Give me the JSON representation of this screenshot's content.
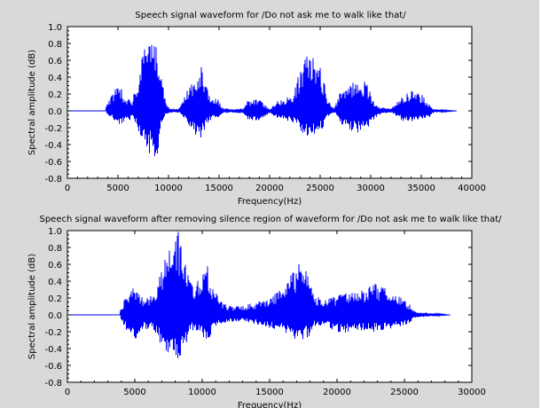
{
  "figure": {
    "background": "#d9d9d9",
    "plot_background": "#ffffff",
    "line_color": "#0000ff"
  },
  "chart_data": [
    {
      "type": "line",
      "title": "Speech signal waveform for /Do not ask me to walk like that/",
      "xlabel": "Frequency(Hz)",
      "ylabel": "Spectral amplitude (dB)",
      "xlim": [
        0,
        40000
      ],
      "ylim": [
        -0.8,
        1.0
      ],
      "xticks": [
        0,
        5000,
        10000,
        15000,
        20000,
        25000,
        30000,
        35000,
        40000
      ],
      "xtick_labels": [
        "0",
        "5000",
        "10000",
        "15000",
        "20000",
        "25000",
        "30000",
        "35000",
        "40000"
      ],
      "yticks": [
        -0.8,
        -0.6,
        -0.4,
        -0.2,
        0.0,
        0.2,
        0.4,
        0.6,
        0.8,
        1.0
      ],
      "ytick_labels": [
        "-0.8",
        "-0.6",
        "-0.4",
        "-0.2",
        "0.0",
        "0.2",
        "0.4",
        "0.6",
        "0.8",
        "1.0"
      ],
      "grid": false,
      "series": [
        {
          "color": "#0000ff",
          "signal_end": 38500,
          "envelope": [
            {
              "x": 3800,
              "upper": 0.05,
              "lower": -0.04
            },
            {
              "x": 4700,
              "upper": 0.28,
              "lower": -0.12
            },
            {
              "x": 5100,
              "upper": 0.38,
              "lower": -0.18
            },
            {
              "x": 5600,
              "upper": 0.18,
              "lower": -0.14
            },
            {
              "x": 6400,
              "upper": 0.12,
              "lower": -0.1
            },
            {
              "x": 7200,
              "upper": 0.55,
              "lower": -0.3
            },
            {
              "x": 7800,
              "upper": 0.8,
              "lower": -0.48
            },
            {
              "x": 8400,
              "upper": 0.86,
              "lower": -0.54
            },
            {
              "x": 8800,
              "upper": 1.0,
              "lower": -0.62
            },
            {
              "x": 9200,
              "upper": 0.62,
              "lower": -0.22
            },
            {
              "x": 9700,
              "upper": 0.1,
              "lower": -0.04
            },
            {
              "x": 10200,
              "upper": 0.03,
              "lower": -0.02
            },
            {
              "x": 11000,
              "upper": 0.02,
              "lower": -0.02
            },
            {
              "x": 11900,
              "upper": 0.28,
              "lower": -0.16
            },
            {
              "x": 12600,
              "upper": 0.38,
              "lower": -0.28
            },
            {
              "x": 13200,
              "upper": 0.55,
              "lower": -0.36
            },
            {
              "x": 13800,
              "upper": 0.28,
              "lower": -0.16
            },
            {
              "x": 14300,
              "upper": 0.12,
              "lower": -0.1
            },
            {
              "x": 14800,
              "upper": 0.16,
              "lower": -0.08
            },
            {
              "x": 15300,
              "upper": 0.04,
              "lower": -0.03
            },
            {
              "x": 16200,
              "upper": 0.02,
              "lower": -0.02
            },
            {
              "x": 17400,
              "upper": 0.03,
              "lower": -0.03
            },
            {
              "x": 17800,
              "upper": 0.12,
              "lower": -0.1
            },
            {
              "x": 18600,
              "upper": 0.14,
              "lower": -0.12
            },
            {
              "x": 19200,
              "upper": 0.12,
              "lower": -0.1
            },
            {
              "x": 20000,
              "upper": 0.02,
              "lower": -0.02
            },
            {
              "x": 20700,
              "upper": 0.12,
              "lower": -0.1
            },
            {
              "x": 21400,
              "upper": 0.15,
              "lower": -0.12
            },
            {
              "x": 22200,
              "upper": 0.18,
              "lower": -0.14
            },
            {
              "x": 22800,
              "upper": 0.4,
              "lower": -0.2
            },
            {
              "x": 23400,
              "upper": 0.62,
              "lower": -0.3
            },
            {
              "x": 24000,
              "upper": 0.72,
              "lower": -0.32
            },
            {
              "x": 24600,
              "upper": 0.62,
              "lower": -0.28
            },
            {
              "x": 25200,
              "upper": 0.46,
              "lower": -0.22
            },
            {
              "x": 25800,
              "upper": 0.12,
              "lower": -0.06
            },
            {
              "x": 26400,
              "upper": 0.03,
              "lower": -0.02
            },
            {
              "x": 26900,
              "upper": 0.2,
              "lower": -0.14
            },
            {
              "x": 27800,
              "upper": 0.32,
              "lower": -0.24
            },
            {
              "x": 28800,
              "upper": 0.38,
              "lower": -0.26
            },
            {
              "x": 29600,
              "upper": 0.34,
              "lower": -0.22
            },
            {
              "x": 30300,
              "upper": 0.12,
              "lower": -0.1
            },
            {
              "x": 31000,
              "upper": 0.04,
              "lower": -0.03
            },
            {
              "x": 32000,
              "upper": 0.03,
              "lower": -0.02
            },
            {
              "x": 33100,
              "upper": 0.18,
              "lower": -0.12
            },
            {
              "x": 34100,
              "upper": 0.26,
              "lower": -0.14
            },
            {
              "x": 35000,
              "upper": 0.2,
              "lower": -0.12
            },
            {
              "x": 35800,
              "upper": 0.08,
              "lower": -0.08
            },
            {
              "x": 36200,
              "upper": 0.02,
              "lower": -0.02
            },
            {
              "x": 38500,
              "upper": 0.0,
              "lower": 0.0
            }
          ]
        }
      ]
    },
    {
      "type": "line",
      "title": "Speech signal waveform after removing silence region of waveform for /Do not ask me to walk like that/",
      "xlabel": "Frequency(Hz)",
      "ylabel": "Spectral amplitude (dB)",
      "xlim": [
        0,
        30000
      ],
      "ylim": [
        -0.8,
        1.0
      ],
      "xticks": [
        0,
        5000,
        10000,
        15000,
        20000,
        25000,
        30000
      ],
      "xtick_labels": [
        "0",
        "5000",
        "10000",
        "15000",
        "20000",
        "25000",
        "30000"
      ],
      "yticks": [
        -0.8,
        -0.6,
        -0.4,
        -0.2,
        0.0,
        0.2,
        0.4,
        0.6,
        0.8,
        1.0
      ],
      "ytick_labels": [
        "-0.8",
        "-0.6",
        "-0.4",
        "-0.2",
        "0.0",
        "0.2",
        "0.4",
        "0.6",
        "0.8",
        "1.0"
      ],
      "grid": false,
      "series": [
        {
          "color": "#0000ff",
          "signal_end": 28400,
          "envelope": [
            {
              "x": 3900,
              "upper": 0.04,
              "lower": -0.04
            },
            {
              "x": 4500,
              "upper": 0.3,
              "lower": -0.24
            },
            {
              "x": 5000,
              "upper": 0.38,
              "lower": -0.3
            },
            {
              "x": 5600,
              "upper": 0.2,
              "lower": -0.16
            },
            {
              "x": 6300,
              "upper": 0.24,
              "lower": -0.18
            },
            {
              "x": 7000,
              "upper": 0.6,
              "lower": -0.38
            },
            {
              "x": 7600,
              "upper": 0.82,
              "lower": -0.48
            },
            {
              "x": 8200,
              "upper": 1.0,
              "lower": -0.62
            },
            {
              "x": 8700,
              "upper": 0.7,
              "lower": -0.38
            },
            {
              "x": 9200,
              "upper": 0.38,
              "lower": -0.2
            },
            {
              "x": 9800,
              "upper": 0.44,
              "lower": -0.22
            },
            {
              "x": 10400,
              "upper": 0.58,
              "lower": -0.34
            },
            {
              "x": 10900,
              "upper": 0.3,
              "lower": -0.16
            },
            {
              "x": 11500,
              "upper": 0.14,
              "lower": -0.1
            },
            {
              "x": 12300,
              "upper": 0.1,
              "lower": -0.08
            },
            {
              "x": 13200,
              "upper": 0.12,
              "lower": -0.08
            },
            {
              "x": 14200,
              "upper": 0.16,
              "lower": -0.12
            },
            {
              "x": 15000,
              "upper": 0.2,
              "lower": -0.16
            },
            {
              "x": 15800,
              "upper": 0.3,
              "lower": -0.18
            },
            {
              "x": 16500,
              "upper": 0.46,
              "lower": -0.26
            },
            {
              "x": 17200,
              "upper": 0.62,
              "lower": -0.32
            },
            {
              "x": 17800,
              "upper": 0.52,
              "lower": -0.28
            },
            {
              "x": 18300,
              "upper": 0.24,
              "lower": -0.14
            },
            {
              "x": 19000,
              "upper": 0.18,
              "lower": -0.12
            },
            {
              "x": 19800,
              "upper": 0.22,
              "lower": -0.2
            },
            {
              "x": 20600,
              "upper": 0.3,
              "lower": -0.22
            },
            {
              "x": 21400,
              "upper": 0.26,
              "lower": -0.18
            },
            {
              "x": 22200,
              "upper": 0.34,
              "lower": -0.2
            },
            {
              "x": 23000,
              "upper": 0.38,
              "lower": -0.2
            },
            {
              "x": 23800,
              "upper": 0.3,
              "lower": -0.18
            },
            {
              "x": 24600,
              "upper": 0.24,
              "lower": -0.14
            },
            {
              "x": 25300,
              "upper": 0.14,
              "lower": -0.1
            },
            {
              "x": 25800,
              "upper": 0.04,
              "lower": -0.03
            },
            {
              "x": 28400,
              "upper": 0.0,
              "lower": 0.0
            }
          ]
        }
      ]
    }
  ]
}
